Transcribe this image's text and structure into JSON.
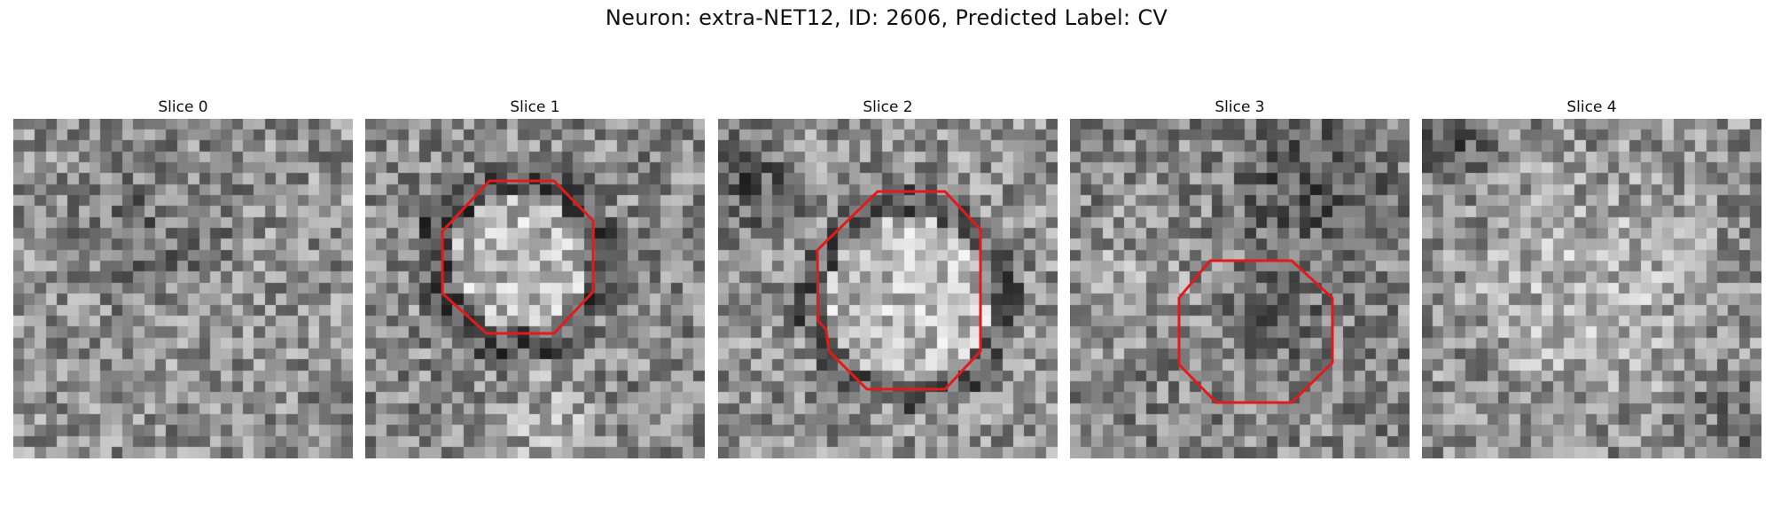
{
  "figure": {
    "title": "Neuron: extra-NET12, ID: 2606, Predicted Label: CV",
    "contour_color": "#e31a1c",
    "panels": [
      {
        "label": "Slice 0"
      },
      {
        "label": "Slice 1"
      },
      {
        "label": "Slice 2"
      },
      {
        "label": "Slice 3"
      },
      {
        "label": "Slice 4"
      }
    ]
  }
}
